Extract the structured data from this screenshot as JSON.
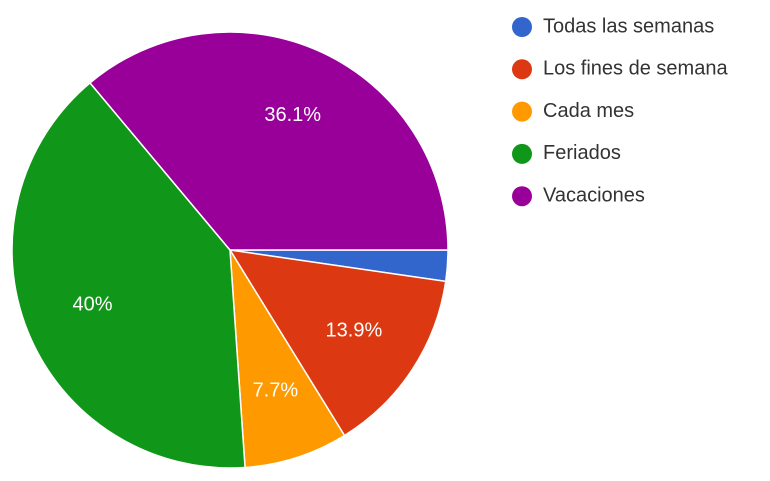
{
  "chart_data": {
    "type": "pie",
    "categories": [
      "Todas las semanas",
      "Los fines de semana",
      "Cada mes",
      "Feriados",
      "Vacaciones"
    ],
    "values": [
      2.3,
      13.9,
      7.7,
      40,
      36.1
    ],
    "value_labels": [
      null,
      "13.9%",
      "7.7%",
      "40%",
      "36.1%"
    ],
    "colors": [
      "#3366cc",
      "#dc3912",
      "#ff9900",
      "#109618",
      "#990099"
    ]
  }
}
